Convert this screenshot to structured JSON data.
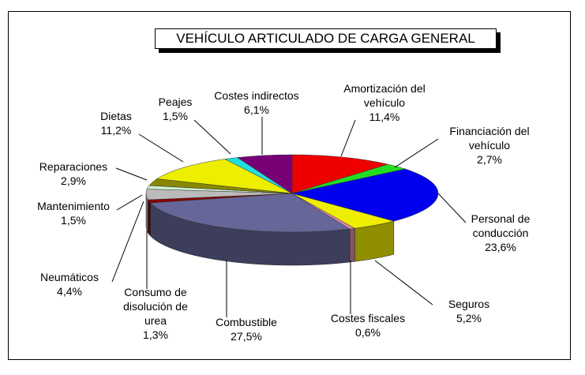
{
  "chart_data": {
    "type": "pie",
    "title": "VEHÍCULO ARTICULADO DE CARGA GENERAL",
    "three_d": true,
    "legend": "none",
    "slices": [
      {
        "label": "Amortización del vehículo",
        "value": 11.4,
        "value_label": "11,4%",
        "color": "#ee0000"
      },
      {
        "label": "Financiación del vehículo",
        "value": 2.7,
        "value_label": "2,7%",
        "color": "#22dd22"
      },
      {
        "label": "Personal de conducción",
        "value": 23.6,
        "value_label": "23,6%",
        "color": "#0000ee"
      },
      {
        "label": "Seguros",
        "value": 5.2,
        "value_label": "5,2%",
        "color": "#eeee00"
      },
      {
        "label": "Costes fiscales",
        "value": 0.6,
        "value_label": "0,6%",
        "color": "#dd88aa"
      },
      {
        "label": "Combustible",
        "value": 27.5,
        "value_label": "27,5%",
        "color": "#666699"
      },
      {
        "label": "Consumo de disolución de urea",
        "value": 1.3,
        "value_label": "1,3%",
        "color": "#880000"
      },
      {
        "label": "Neumáticos",
        "value": 4.4,
        "value_label": "4,4%",
        "color": "#bbbbbb"
      },
      {
        "label": "Mantenimiento",
        "value": 1.5,
        "value_label": "1,5%",
        "color": "#cceecc"
      },
      {
        "label": "Reparaciones",
        "value": 2.9,
        "value_label": "2,9%",
        "color": "#888800"
      },
      {
        "label": "Dietas",
        "value": 11.2,
        "value_label": "11,2%",
        "color": "#eeee00"
      },
      {
        "label": "Peajes",
        "value": 1.5,
        "value_label": "1,5%",
        "color": "#22dddd"
      },
      {
        "label": "Costes indirectos",
        "value": 6.1,
        "value_label": "6,1%",
        "color": "#770077"
      }
    ]
  }
}
